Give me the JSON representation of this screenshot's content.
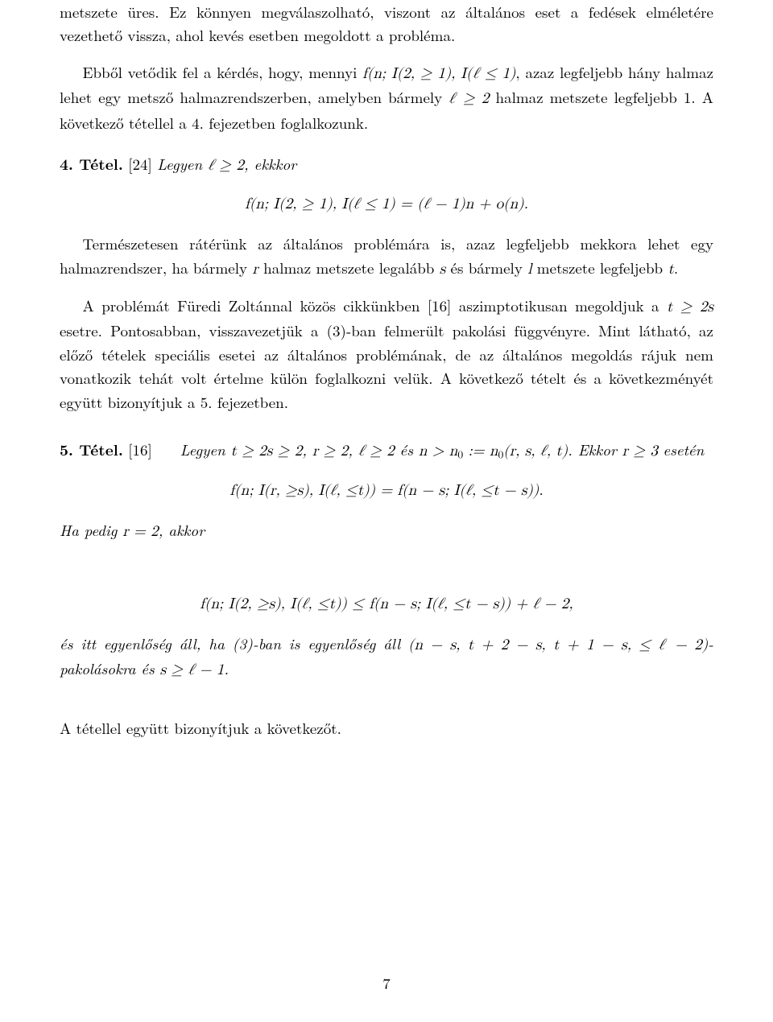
{
  "paragraphs": {
    "p1": "metszete üres. Ez könnyen megválaszolható, viszont az általános eset a fedések elméletére vezethető vissza, ahol kevés esetben megoldott a probléma.",
    "p2_a": "Ebből vetődik fel a kérdés, hogy, mennyi ",
    "p2_m1": "f(n; I(2, ≥ 1), I(ℓ ≤ 1)",
    "p2_b": ", azaz legfeljebb hány halmaz lehet egy metsző halmazrendszerben, amelyben bármely ",
    "p2_m2": "ℓ ≥ 2",
    "p2_c": " halmaz metszete legfeljebb 1. A következő tétellel a 4. fejezetben foglalkozunk.",
    "thm4_head": "4. Tétel.",
    "thm4_ref": " [24] ",
    "thm4_text_a": "Legyen ",
    "thm4_m1": "ℓ ≥ 2",
    "thm4_text_b": ", ekkkor",
    "display1": "f(n; I(2, ≥ 1), I(ℓ ≤ 1) = (ℓ − 1)n + o(n).",
    "p3_a": "Természetesen rátérünk az általános problémára is, azaz legfeljebb mekkora lehet egy halmazrendszer, ha bármely ",
    "p3_m1": "r",
    "p3_b": " halmaz metszete legalább ",
    "p3_m2": "s",
    "p3_c": " és bármely ",
    "p3_m3": "l",
    "p3_d": " metszete legfeljebb ",
    "p3_m4": "t",
    "p3_e": ".",
    "p4_a": "A problémát Füredi Zoltánnal közös cikkünkben [16] aszimptotikusan megoldjuk a ",
    "p4_m1": "t ≥ 2s",
    "p4_b": " esetre. Pontosabban, visszavezetjük a (3)-ban felmerült pakolási függvényre. Mint látható, az előző tételek speciális esetei az általános problémának, de az általános megoldás rájuk nem vonatkozik tehát volt értelme külön foglalkozni velük. A következő tételt és a következményét együtt bizonyítjuk a 5. fejezetben.",
    "thm5_head": "5. Tétel.",
    "thm5_ref": " [16]   ",
    "thm5_text_a": "Legyen ",
    "thm5_m1": "t ≥ 2s ≥ 2",
    "thm5_text_b": ", ",
    "thm5_m2": "r ≥ 2",
    "thm5_text_c": ", ",
    "thm5_m3": "ℓ ≥ 2",
    "thm5_text_d": " és ",
    "thm5_m4_a": "n > n",
    "thm5_m4_b": " := n",
    "thm5_m4_c": "(r, s, ℓ, t)",
    "thm5_text_e": ". Ekkor ",
    "thm5_m5": "r ≥ 3",
    "thm5_text_f": " esetén",
    "display2": "f(n; I(r, ≥s), I(ℓ, ≤t)) = f(n − s; I(ℓ, ≤t − s)).",
    "thm5_text_g": "Ha pedig ",
    "thm5_m6": "r = 2",
    "thm5_text_h": ", akkor",
    "display3": "f(n; I(2, ≥s), I(ℓ, ≤t)) ≤ f(n − s; I(ℓ, ≤t − s)) + ℓ − 2,",
    "p5_a": "és itt egyenlőség áll, ha (3)-ban is egyenlőség áll ",
    "p5_m1": "(n − s, t + 2 − s, t + 1 − s, ≤ ℓ − 2)",
    "p5_b": "-pakolásokra és ",
    "p5_m2": "s ≥ ℓ − 1",
    "p5_c": ".",
    "p6": "A tétellel együtt bizonyítjuk a következőt."
  },
  "pagenum": "7"
}
